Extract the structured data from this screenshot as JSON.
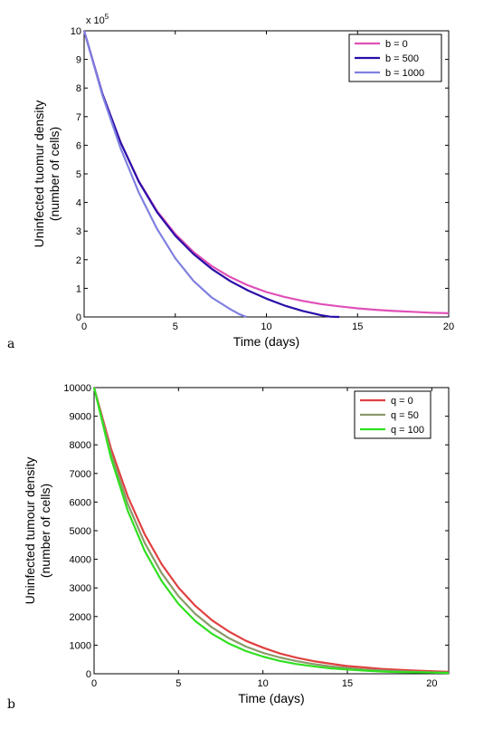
{
  "chart_data": [
    {
      "type": "line",
      "panel_label": "a",
      "xlabel": "Time (days)",
      "ylabel": "Uninfected tuomur density (number of cells)",
      "ylabel_lines": [
        "Uninfected tuomur density",
        "(number of cells)"
      ],
      "y_multiplier_label": "x 10",
      "y_multiplier_exponent": "5",
      "xlim": [
        0,
        20
      ],
      "ylim": [
        0,
        10
      ],
      "xticks": [
        0,
        5,
        10,
        15,
        20
      ],
      "yticks": [
        0,
        1,
        2,
        3,
        4,
        5,
        6,
        7,
        8,
        9,
        10
      ],
      "grid": false,
      "legend_position": "top-right",
      "series": [
        {
          "name": "b = 0",
          "color": "#e050b8",
          "x": [
            0,
            1,
            2,
            3,
            4,
            5,
            6,
            7,
            8,
            9,
            10,
            11,
            12,
            13,
            14,
            15,
            16,
            17,
            18,
            19,
            20
          ],
          "y": [
            10,
            7.8,
            6.1,
            4.75,
            3.7,
            2.9,
            2.27,
            1.78,
            1.4,
            1.1,
            0.87,
            0.7,
            0.56,
            0.45,
            0.37,
            0.3,
            0.25,
            0.21,
            0.18,
            0.15,
            0.13
          ]
        },
        {
          "name": "b = 500",
          "color": "#2a0ea8",
          "x": [
            0,
            1,
            2,
            3,
            4,
            5,
            6,
            7,
            8,
            9,
            10,
            11,
            12,
            13,
            13.5,
            14
          ],
          "y": [
            10,
            7.8,
            6.1,
            4.73,
            3.66,
            2.84,
            2.2,
            1.68,
            1.26,
            0.92,
            0.64,
            0.4,
            0.21,
            0.06,
            0.01,
            0
          ]
        },
        {
          "name": "b = 1000",
          "color": "#8080e0",
          "x": [
            0,
            1,
            2,
            3,
            4,
            5,
            6,
            7,
            8,
            8.5,
            8.9
          ],
          "y": [
            10,
            7.75,
            5.9,
            4.35,
            3.08,
            2.05,
            1.26,
            0.68,
            0.28,
            0.1,
            0
          ]
        }
      ]
    },
    {
      "type": "line",
      "panel_label": "b",
      "xlabel": "Time (days)",
      "ylabel": "Uninfected tumour density (number of cells)",
      "ylabel_lines": [
        "Uninfected tumour density",
        "(number of cells)"
      ],
      "xlim": [
        0,
        21
      ],
      "ylim": [
        0,
        10000
      ],
      "xticks": [
        0,
        5,
        10,
        15,
        20
      ],
      "yticks": [
        0,
        1000,
        2000,
        3000,
        4000,
        5000,
        6000,
        7000,
        8000,
        9000,
        10000
      ],
      "grid": false,
      "legend_position": "top-right",
      "series": [
        {
          "name": "q = 0",
          "color": "#e04040",
          "x": [
            0,
            1,
            2,
            3,
            4,
            5,
            6,
            7,
            8,
            9,
            10,
            11,
            12,
            13,
            14,
            15,
            16,
            17,
            18,
            19,
            20,
            21
          ],
          "y": [
            10000,
            7870,
            6190,
            4870,
            3830,
            3010,
            2370,
            1860,
            1470,
            1150,
            910,
            710,
            560,
            440,
            350,
            270,
            220,
            170,
            140,
            110,
            90,
            70
          ]
        },
        {
          "name": "q = 50",
          "color": "#8a9a6a",
          "x": [
            0,
            1,
            2,
            3,
            4,
            5,
            6,
            7,
            8,
            9,
            10,
            11,
            12,
            13,
            14,
            15,
            16,
            17,
            18,
            19,
            20,
            21
          ],
          "y": [
            10000,
            7700,
            5930,
            4570,
            3520,
            2710,
            2090,
            1610,
            1240,
            950,
            730,
            570,
            440,
            340,
            260,
            200,
            150,
            120,
            90,
            70,
            50,
            40
          ]
        },
        {
          "name": "q = 100",
          "color": "#30e020",
          "x": [
            0,
            1,
            2,
            3,
            4,
            5,
            6,
            7,
            8,
            9,
            10,
            11,
            12,
            13,
            14,
            15,
            16,
            17,
            18,
            19,
            20,
            21
          ],
          "y": [
            10000,
            7540,
            5690,
            4290,
            3240,
            2440,
            1840,
            1390,
            1050,
            790,
            600,
            450,
            340,
            260,
            190,
            150,
            110,
            80,
            60,
            50,
            40,
            30
          ]
        }
      ]
    }
  ]
}
